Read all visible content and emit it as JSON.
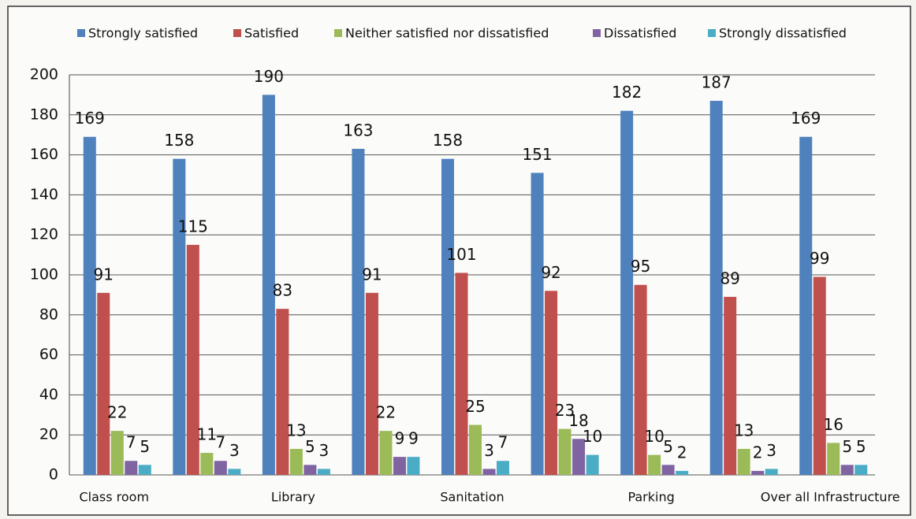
{
  "chart_data": {
    "type": "bar",
    "categories": [
      "Class room",
      null,
      "Library",
      null,
      "Sanitation",
      null,
      "Parking",
      null,
      "Over all Infrastructure"
    ],
    "series": [
      {
        "name": "Strongly satisfied",
        "color": "#4f81bd",
        "values": [
          169,
          158,
          190,
          163,
          158,
          151,
          182,
          187,
          169
        ]
      },
      {
        "name": "Satisfied",
        "color": "#c0504d",
        "values": [
          91,
          115,
          83,
          91,
          101,
          92,
          95,
          89,
          99
        ]
      },
      {
        "name": "Neither satisfied nor dissatisfied",
        "color": "#9bbb59",
        "values": [
          22,
          11,
          13,
          22,
          25,
          23,
          10,
          13,
          16
        ]
      },
      {
        "name": "Dissatisfied",
        "color": "#8064a2",
        "values": [
          7,
          7,
          5,
          9,
          3,
          18,
          5,
          2,
          5
        ]
      },
      {
        "name": "Strongly dissatisfied",
        "color": "#4bacc6",
        "values": [
          5,
          3,
          3,
          9,
          7,
          10,
          2,
          3,
          5
        ]
      }
    ],
    "ylim": [
      0,
      200
    ],
    "yticks": [
      0,
      20,
      40,
      60,
      80,
      100,
      120,
      140,
      160,
      180,
      200
    ],
    "grid": true,
    "legend": "top"
  }
}
